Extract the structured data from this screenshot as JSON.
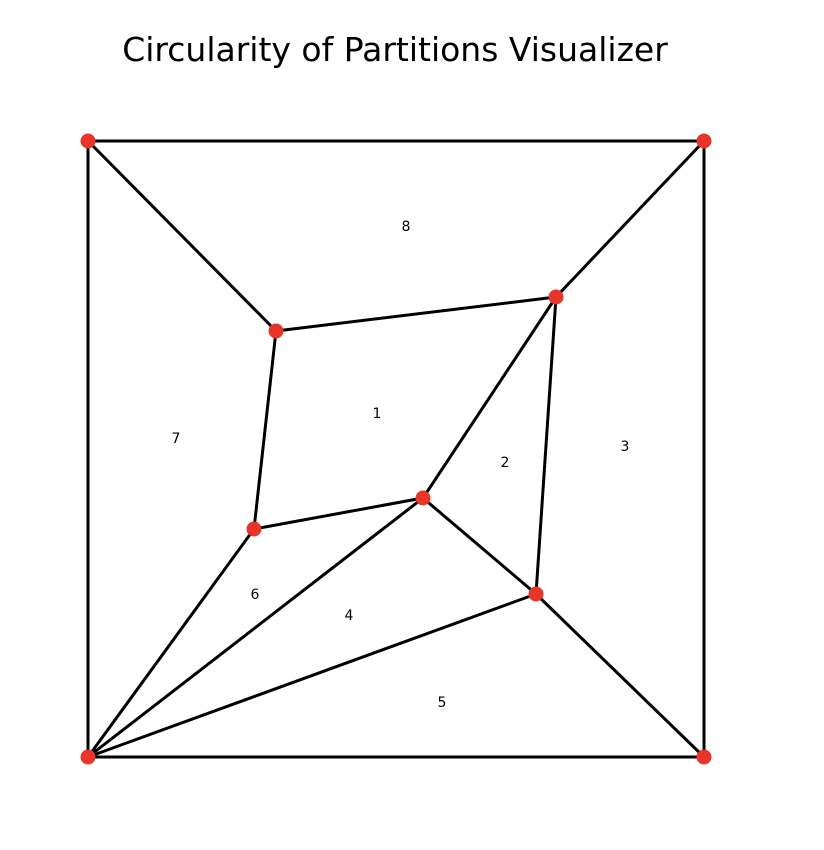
{
  "title": "Circularity of Partitions Visualizer",
  "colors": {
    "edge": "#000000",
    "vertex": "#e8352a",
    "background": "#ffffff"
  },
  "vertices": [
    {
      "id": "top-left"
    },
    {
      "id": "top-right"
    },
    {
      "id": "bottom-left"
    },
    {
      "id": "bottom-right"
    },
    {
      "id": "inner-upper-left"
    },
    {
      "id": "inner-upper-right"
    },
    {
      "id": "inner-lower-left"
    },
    {
      "id": "inner-center"
    },
    {
      "id": "inner-lower-right"
    }
  ],
  "edges": [
    [
      "top-left",
      "top-right"
    ],
    [
      "top-right",
      "bottom-right"
    ],
    [
      "bottom-right",
      "bottom-left"
    ],
    [
      "bottom-left",
      "top-left"
    ],
    [
      "top-left",
      "inner-upper-left"
    ],
    [
      "top-right",
      "inner-upper-right"
    ],
    [
      "inner-upper-left",
      "inner-upper-right"
    ],
    [
      "inner-upper-left",
      "inner-lower-left"
    ],
    [
      "inner-lower-left",
      "inner-center"
    ],
    [
      "inner-center",
      "inner-upper-right"
    ],
    [
      "inner-upper-right",
      "inner-lower-right"
    ],
    [
      "inner-center",
      "inner-lower-right"
    ],
    [
      "inner-lower-right",
      "bottom-right"
    ],
    [
      "inner-lower-left",
      "bottom-left"
    ],
    [
      "inner-center",
      "bottom-left"
    ],
    [
      "inner-lower-right",
      "bottom-left"
    ]
  ],
  "regions": [
    {
      "label": "1"
    },
    {
      "label": "2"
    },
    {
      "label": "3"
    },
    {
      "label": "4"
    },
    {
      "label": "5"
    },
    {
      "label": "6"
    },
    {
      "label": "7"
    },
    {
      "label": "8"
    }
  ]
}
